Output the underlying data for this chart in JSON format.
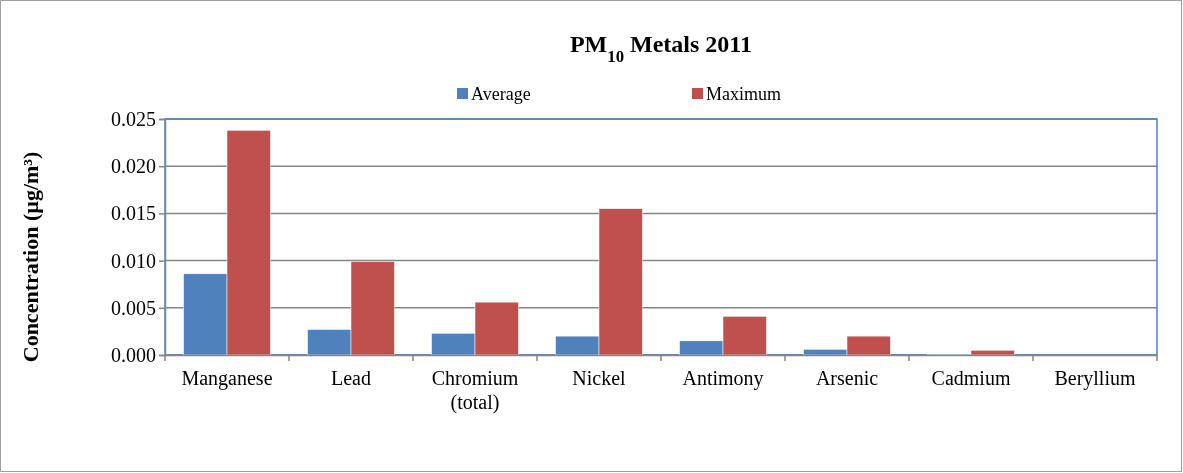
{
  "chart_data": {
    "type": "bar",
    "title": "PM$_{10}$ Metals 2011",
    "ylabel": "Concentration (µg/m³)",
    "categories": [
      "Manganese",
      "Lead",
      "Chromium (total)",
      "Nickel",
      "Antimony",
      "Arsenic",
      "Cadmium",
      "Beryllium"
    ],
    "series": [
      {
        "name": "Average",
        "color": "#4f81bd",
        "values": [
          0.0086,
          0.0027,
          0.0023,
          0.002,
          0.0015,
          0.0006,
          0.0001,
          null
        ]
      },
      {
        "name": "Maximum",
        "color": "#c0504d",
        "values": [
          0.0238,
          0.0099,
          0.0056,
          0.0155,
          0.0041,
          0.002,
          0.0005,
          null
        ]
      }
    ],
    "ylim": [
      0,
      0.025
    ],
    "yticks": [
      {
        "value": 0,
        "label": "0.000"
      },
      {
        "value": 0.005,
        "label": "0.005"
      },
      {
        "value": 0.01,
        "label": "0.010"
      },
      {
        "value": 0.015,
        "label": "0.015"
      },
      {
        "value": 0.02,
        "label": "0.020"
      },
      {
        "value": 0.025,
        "label": "0.025"
      }
    ],
    "grid": "y",
    "legend": "top"
  }
}
